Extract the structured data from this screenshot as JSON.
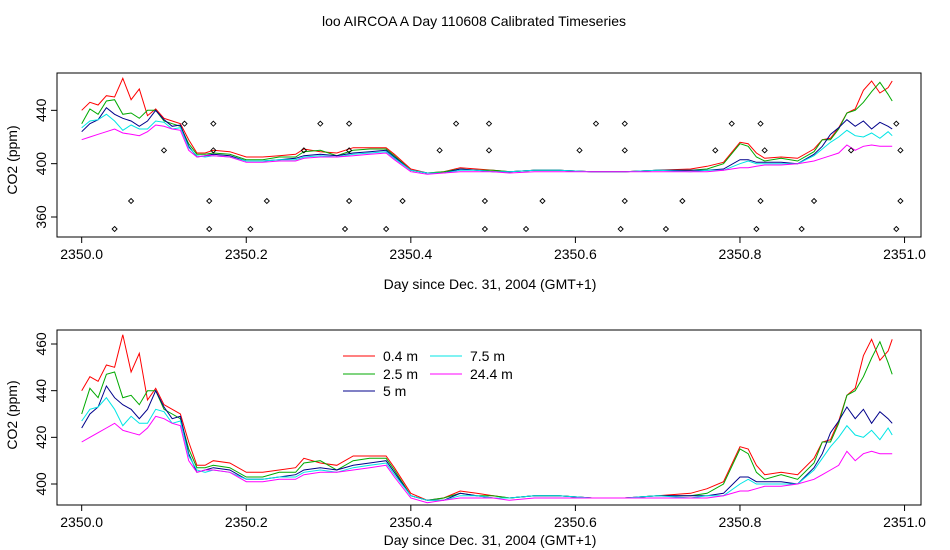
{
  "title": "loo AIRCOA A  Day 110608  Calibrated Timeseries",
  "chart_data": [
    {
      "type": "line",
      "xlabel": "Day since Dec. 31, 2004 (GMT+1)",
      "ylabel": "CO2 (ppm)",
      "xlim": [
        2349.97,
        2351.02
      ],
      "ylim": [
        345,
        468
      ],
      "x_ticks": [
        2350.0,
        2350.2,
        2350.4,
        2350.6,
        2350.8,
        2351.0
      ],
      "x_tick_labels": [
        "2350.0",
        "2350.2",
        "2350.4",
        "2350.6",
        "2350.8",
        "2351.0"
      ],
      "y_ticks": [
        360,
        400,
        440
      ],
      "y_tick_labels": [
        "360",
        "400",
        "440"
      ],
      "series_refs": [
        0,
        1,
        2,
        3,
        4
      ],
      "points": {
        "name": "",
        "x": [
          2350.04,
          2350.06,
          2350.1,
          2350.125,
          2350.155,
          2350.155,
          2350.16,
          2350.16,
          2350.205,
          2350.225,
          2350.27,
          2350.29,
          2350.32,
          2350.325,
          2350.325,
          2350.325,
          2350.37,
          2350.39,
          2350.435,
          2350.455,
          2350.49,
          2350.49,
          2350.495,
          2350.495,
          2350.54,
          2350.56,
          2350.605,
          2350.625,
          2350.655,
          2350.66,
          2350.66,
          2350.66,
          2350.71,
          2350.73,
          2350.77,
          2350.79,
          2350.82,
          2350.825,
          2350.83,
          2350.825,
          2350.875,
          2350.89,
          2350.935,
          2350.99,
          2350.99,
          2350.995,
          2350.995
        ],
        "y": [
          351,
          372,
          410,
          430,
          351,
          372,
          410,
          430,
          351,
          372,
          410,
          430,
          351,
          372,
          410,
          430,
          351,
          372,
          410,
          430,
          351,
          372,
          410,
          430,
          351,
          372,
          410,
          430,
          351,
          372,
          410,
          430,
          351,
          372,
          410,
          430,
          351,
          372,
          410,
          430,
          351,
          372,
          410,
          430,
          351,
          372,
          410
        ]
      }
    },
    {
      "type": "line",
      "xlabel": "Day since Dec. 31, 2004 (GMT+1)",
      "ylabel": "CO2 (ppm)",
      "xlim": [
        2349.97,
        2351.02
      ],
      "ylim": [
        391,
        466
      ],
      "x_ticks": [
        2350.0,
        2350.2,
        2350.4,
        2350.6,
        2350.8,
        2351.0
      ],
      "x_tick_labels": [
        "2350.0",
        "2350.2",
        "2350.4",
        "2350.6",
        "2350.8",
        "2351.0"
      ],
      "y_ticks": [
        400,
        420,
        440,
        460
      ],
      "y_tick_labels": [
        "400",
        "420",
        "440",
        "460"
      ],
      "legend": {
        "placement": "top-center",
        "entries": [
          "0.4 m",
          "2.5 m",
          "5 m",
          "7.5 m",
          "24.4 m"
        ]
      },
      "series_refs": [
        0,
        1,
        2,
        3,
        4
      ]
    }
  ],
  "series": [
    {
      "name": "0.4 m",
      "color": "#ff0000",
      "x": [
        2350.0,
        2350.01,
        2350.02,
        2350.03,
        2350.04,
        2350.05,
        2350.06,
        2350.07,
        2350.08,
        2350.09,
        2350.1,
        2350.11,
        2350.12,
        2350.13,
        2350.14,
        2350.15,
        2350.16,
        2350.18,
        2350.2,
        2350.22,
        2350.24,
        2350.26,
        2350.27,
        2350.29,
        2350.31,
        2350.33,
        2350.35,
        2350.37,
        2350.38,
        2350.4,
        2350.42,
        2350.44,
        2350.46,
        2350.48,
        2350.5,
        2350.52,
        2350.55,
        2350.58,
        2350.62,
        2350.66,
        2350.7,
        2350.74,
        2350.76,
        2350.78,
        2350.8,
        2350.81,
        2350.82,
        2350.83,
        2350.85,
        2350.87,
        2350.89,
        2350.9,
        2350.91,
        2350.92,
        2350.93,
        2350.94,
        2350.95,
        2350.96,
        2350.97,
        2350.98,
        2350.985
      ],
      "y": [
        440,
        446,
        444,
        451,
        450,
        464,
        448,
        456,
        436,
        441,
        434,
        432,
        430,
        418,
        408,
        408,
        410,
        409,
        405,
        405,
        406,
        407,
        411,
        409,
        408,
        412,
        412,
        412,
        407,
        396,
        393,
        394,
        397,
        396,
        395,
        394,
        395,
        395,
        394,
        394,
        395,
        396,
        398,
        401,
        416,
        415,
        408,
        404,
        405,
        404,
        411,
        418,
        419,
        427,
        438,
        441,
        455,
        462,
        453,
        457,
        462
      ]
    },
    {
      "name": "2.5 m",
      "color": "#00aa00",
      "x": [
        2350.0,
        2350.01,
        2350.02,
        2350.03,
        2350.04,
        2350.05,
        2350.06,
        2350.07,
        2350.08,
        2350.09,
        2350.1,
        2350.11,
        2350.12,
        2350.13,
        2350.14,
        2350.15,
        2350.16,
        2350.18,
        2350.2,
        2350.22,
        2350.24,
        2350.26,
        2350.27,
        2350.29,
        2350.31,
        2350.33,
        2350.35,
        2350.37,
        2350.38,
        2350.4,
        2350.42,
        2350.44,
        2350.46,
        2350.48,
        2350.5,
        2350.52,
        2350.55,
        2350.58,
        2350.62,
        2350.66,
        2350.7,
        2350.74,
        2350.76,
        2350.78,
        2350.8,
        2350.81,
        2350.82,
        2350.83,
        2350.85,
        2350.87,
        2350.89,
        2350.9,
        2350.91,
        2350.92,
        2350.93,
        2350.94,
        2350.95,
        2350.96,
        2350.97,
        2350.98,
        2350.985
      ],
      "y": [
        430,
        441,
        437,
        447,
        448,
        437,
        438,
        434,
        440,
        440,
        432,
        430,
        428,
        415,
        407,
        407,
        408,
        407,
        403,
        403,
        405,
        405,
        409,
        410,
        406,
        410,
        411,
        411,
        406,
        395,
        393,
        394,
        396,
        395,
        395,
        394,
        395,
        395,
        394,
        394,
        395,
        395,
        396,
        400,
        415,
        413,
        405,
        402,
        404,
        402,
        409,
        418,
        418,
        426,
        438,
        440,
        446,
        454,
        461,
        452,
        447
      ]
    },
    {
      "name": "5 m",
      "color": "#00008b",
      "x": [
        2350.0,
        2350.01,
        2350.02,
        2350.03,
        2350.04,
        2350.05,
        2350.06,
        2350.07,
        2350.08,
        2350.09,
        2350.1,
        2350.11,
        2350.12,
        2350.13,
        2350.14,
        2350.15,
        2350.16,
        2350.18,
        2350.2,
        2350.22,
        2350.24,
        2350.26,
        2350.27,
        2350.29,
        2350.31,
        2350.33,
        2350.35,
        2350.37,
        2350.38,
        2350.4,
        2350.42,
        2350.44,
        2350.46,
        2350.48,
        2350.5,
        2350.52,
        2350.55,
        2350.58,
        2350.62,
        2350.66,
        2350.7,
        2350.74,
        2350.76,
        2350.78,
        2350.8,
        2350.81,
        2350.82,
        2350.83,
        2350.85,
        2350.87,
        2350.89,
        2350.9,
        2350.91,
        2350.92,
        2350.93,
        2350.94,
        2350.95,
        2350.96,
        2350.97,
        2350.98,
        2350.985
      ],
      "y": [
        424,
        430,
        433,
        442,
        437,
        434,
        432,
        428,
        432,
        440,
        433,
        428,
        429,
        413,
        405,
        406,
        407,
        406,
        402,
        402,
        403,
        404,
        406,
        407,
        406,
        408,
        409,
        410,
        405,
        395,
        393,
        393,
        396,
        395,
        394,
        394,
        395,
        395,
        394,
        394,
        395,
        395,
        395,
        396,
        403,
        403,
        401,
        401,
        401,
        400,
        407,
        413,
        422,
        427,
        433,
        428,
        432,
        426,
        431,
        428,
        426
      ]
    },
    {
      "name": "7.5 m",
      "color": "#00e5e5",
      "x": [
        2350.0,
        2350.01,
        2350.02,
        2350.03,
        2350.04,
        2350.05,
        2350.06,
        2350.07,
        2350.08,
        2350.09,
        2350.1,
        2350.11,
        2350.12,
        2350.13,
        2350.14,
        2350.15,
        2350.16,
        2350.18,
        2350.2,
        2350.22,
        2350.24,
        2350.26,
        2350.27,
        2350.29,
        2350.31,
        2350.33,
        2350.35,
        2350.37,
        2350.38,
        2350.4,
        2350.42,
        2350.44,
        2350.46,
        2350.48,
        2350.5,
        2350.52,
        2350.55,
        2350.58,
        2350.62,
        2350.66,
        2350.7,
        2350.74,
        2350.76,
        2350.78,
        2350.8,
        2350.81,
        2350.82,
        2350.83,
        2350.85,
        2350.87,
        2350.89,
        2350.9,
        2350.91,
        2350.92,
        2350.93,
        2350.94,
        2350.95,
        2350.96,
        2350.97,
        2350.98,
        2350.985
      ],
      "y": [
        427,
        432,
        433,
        437,
        432,
        425,
        429,
        426,
        426,
        432,
        431,
        426,
        427,
        412,
        406,
        405,
        406,
        405,
        402,
        402,
        403,
        403,
        405,
        406,
        405,
        407,
        408,
        409,
        404,
        395,
        393,
        393,
        395,
        395,
        394,
        394,
        395,
        395,
        394,
        394,
        395,
        394,
        395,
        395,
        400,
        402,
        400,
        400,
        400,
        400,
        406,
        411,
        416,
        420,
        425,
        421,
        420,
        423,
        419,
        424,
        421
      ]
    },
    {
      "name": "24.4 m",
      "color": "#ff00ff",
      "x": [
        2350.0,
        2350.01,
        2350.02,
        2350.03,
        2350.04,
        2350.05,
        2350.06,
        2350.07,
        2350.08,
        2350.09,
        2350.1,
        2350.11,
        2350.12,
        2350.13,
        2350.14,
        2350.15,
        2350.16,
        2350.18,
        2350.2,
        2350.22,
        2350.24,
        2350.26,
        2350.27,
        2350.29,
        2350.31,
        2350.33,
        2350.35,
        2350.37,
        2350.38,
        2350.4,
        2350.42,
        2350.44,
        2350.46,
        2350.48,
        2350.5,
        2350.52,
        2350.55,
        2350.58,
        2350.62,
        2350.66,
        2350.7,
        2350.74,
        2350.76,
        2350.78,
        2350.8,
        2350.81,
        2350.82,
        2350.83,
        2350.85,
        2350.87,
        2350.89,
        2350.9,
        2350.91,
        2350.92,
        2350.93,
        2350.94,
        2350.95,
        2350.96,
        2350.97,
        2350.98,
        2350.985
      ],
      "y": [
        418,
        420,
        422,
        424,
        426,
        423,
        422,
        421,
        424,
        429,
        428,
        426,
        425,
        410,
        405,
        406,
        406,
        405,
        401,
        401,
        402,
        402,
        404,
        405,
        405,
        406,
        407,
        408,
        403,
        394,
        392,
        393,
        394,
        394,
        394,
        393,
        394,
        394,
        394,
        394,
        394,
        394,
        394,
        395,
        397,
        397,
        398,
        399,
        399,
        400,
        402,
        404,
        406,
        408,
        414,
        410,
        413,
        414,
        413,
        413,
        413
      ]
    }
  ]
}
